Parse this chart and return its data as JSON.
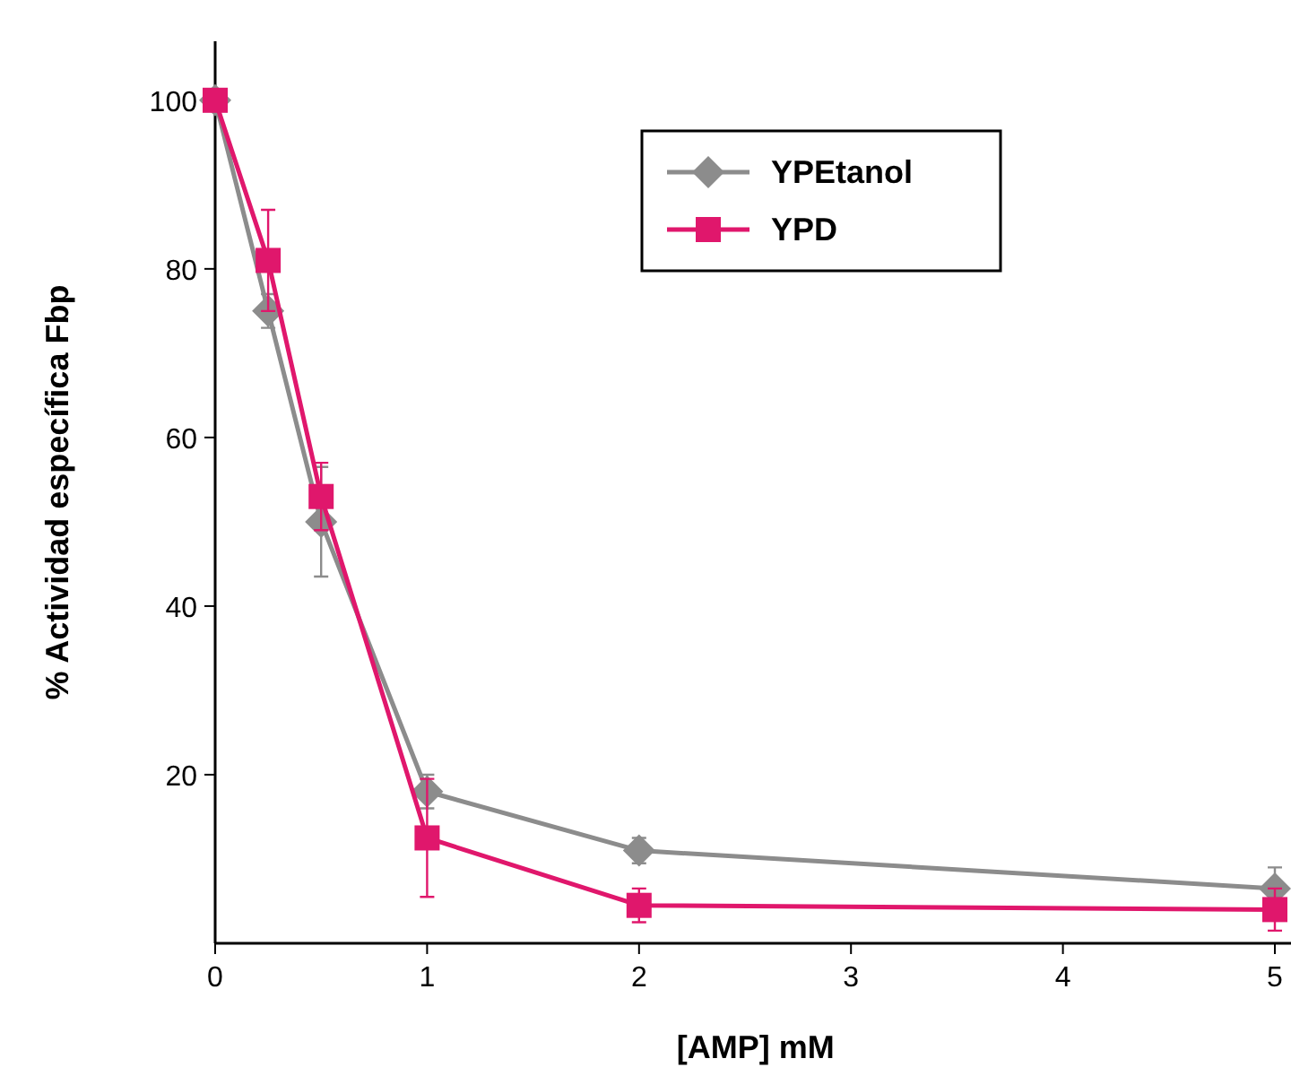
{
  "chart_data": {
    "type": "line",
    "xlabel": "[AMP] mM",
    "ylabel": "% Actividad específica Fbp",
    "x": [
      0,
      0.25,
      0.5,
      1,
      2,
      5
    ],
    "xlim": [
      0,
      5.1
    ],
    "xticks": [
      0,
      1,
      2,
      3,
      4,
      5
    ],
    "ylim": [
      0,
      107
    ],
    "yticks": [
      20,
      40,
      60,
      80,
      100
    ],
    "legend": "top right",
    "line_style": "solid",
    "series": [
      {
        "name": "YPEtanol",
        "color": "#8c8c8c",
        "marker": "diamond",
        "values": [
          100,
          75,
          50,
          18,
          11,
          6.5
        ],
        "errors": [
          null,
          2,
          6.5,
          2,
          1.5,
          2.5
        ]
      },
      {
        "name": "YPD",
        "color": "#e0176c",
        "marker": "square",
        "values": [
          100,
          81,
          53,
          12.5,
          4.5,
          4
        ],
        "errors": [
          null,
          6,
          4,
          7,
          2,
          2.5
        ]
      }
    ]
  }
}
